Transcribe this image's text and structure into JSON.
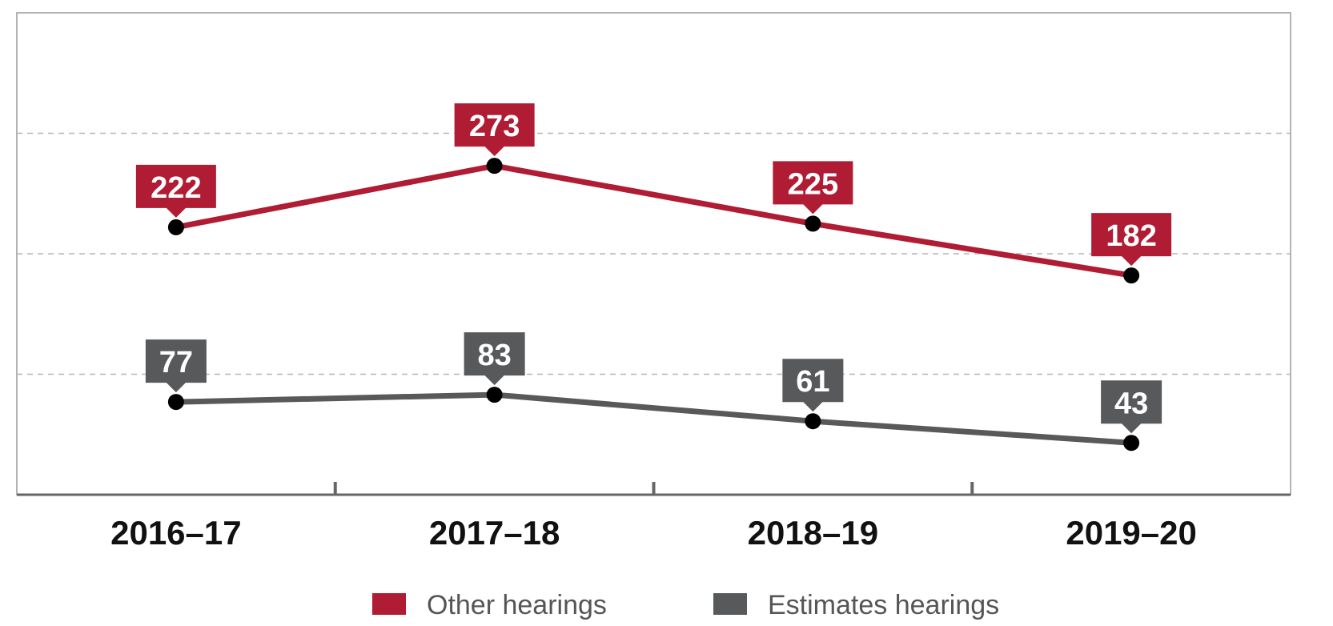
{
  "chart_data": {
    "type": "line",
    "categories": [
      "2016–17",
      "2017–18",
      "2018–19",
      "2019–20"
    ],
    "series": [
      {
        "name": "Other hearings",
        "values": [
          222,
          273,
          225,
          182
        ],
        "color": "#b01c33"
      },
      {
        "name": "Estimates hearings",
        "values": [
          77,
          83,
          61,
          43
        ],
        "color": "#58595b"
      }
    ],
    "ylim": [
      0,
      400
    ],
    "grid": true,
    "legend": "bottom",
    "marker_color": "#000000"
  }
}
